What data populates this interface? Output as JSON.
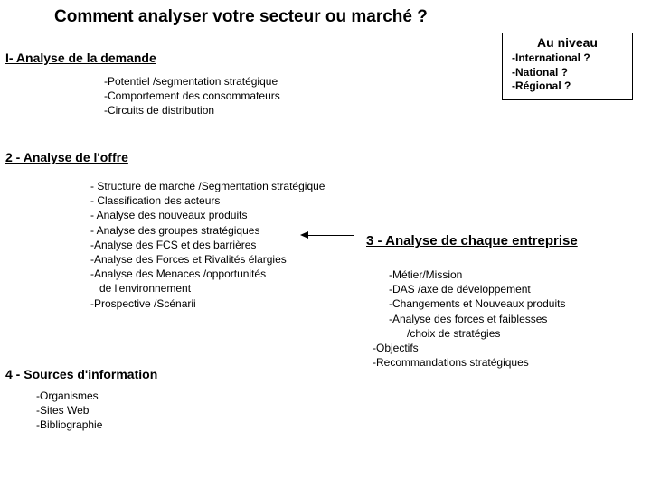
{
  "title": "Comment analyser votre secteur ou marché ?",
  "levelBox": {
    "heading": "Au niveau",
    "items": [
      "-International ?",
      "-National ?",
      "-Régional ?"
    ]
  },
  "section1": {
    "heading": "I- Analyse de la demande",
    "items": [
      "-Potentiel /segmentation stratégique",
      "-Comportement des consommateurs",
      "-Circuits de distribution"
    ]
  },
  "section2": {
    "heading": "2 - Analyse de l'offre",
    "items": [
      "- Structure de marché /Segmentation stratégique",
      "- Classification des acteurs",
      "- Analyse des nouveaux produits",
      "- Analyse des groupes stratégiques",
      "-Analyse des FCS et des barrières",
      "-Analyse des Forces et Rivalités élargies",
      "-Analyse des Menaces /opportunités",
      "   de l'environnement",
      "-Prospective /Scénarii"
    ]
  },
  "section3": {
    "heading": "3 - Analyse de chaque entreprise",
    "items": [
      "-Métier/Mission",
      "-DAS /axe de développement",
      "-Changements et Nouveaux produits",
      "-Analyse des forces et faiblesses",
      "      /choix de stratégies",
      "-Objectifs",
      "-Recommandations stratégiques"
    ]
  },
  "section4": {
    "heading": "4 - Sources d'information",
    "items": [
      "-Organismes",
      "-Sites Web",
      "-Bibliographie"
    ]
  },
  "colors": {
    "text": "#000000",
    "background": "#ffffff",
    "border": "#000000"
  },
  "fontsizes": {
    "title": 19,
    "heading": 14,
    "body": 12,
    "section3_heading": 15
  }
}
